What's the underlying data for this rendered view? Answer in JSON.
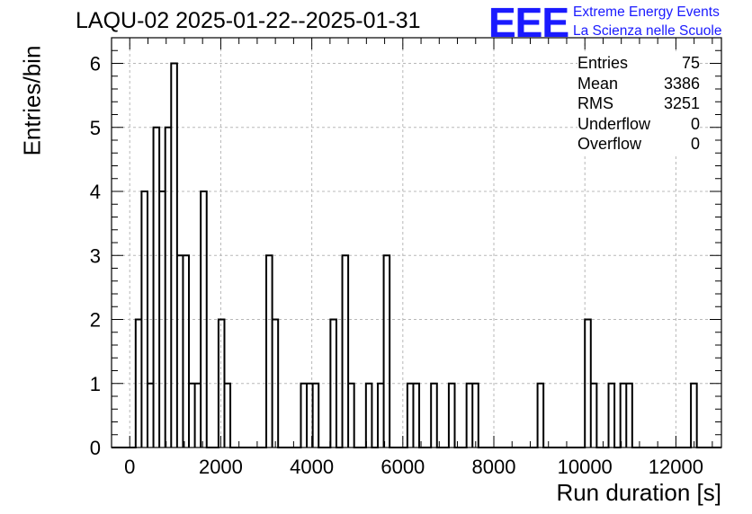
{
  "chart_data": {
    "type": "histogram",
    "title": "LAQU-02 2025-01-22--2025-01-31",
    "xlabel": "Run duration [s]",
    "ylabel": "Entries/bin",
    "xlim": [
      -400,
      13000
    ],
    "ylim": [
      0,
      6.4
    ],
    "x_ticks": [
      0,
      2000,
      4000,
      6000,
      8000,
      10000,
      12000
    ],
    "y_ticks": [
      0,
      1,
      2,
      3,
      4,
      5,
      6
    ],
    "grid": true,
    "bin_width": 130,
    "bins": [
      {
        "x0": 130,
        "x1": 260,
        "count": 2
      },
      {
        "x0": 260,
        "x1": 390,
        "count": 4
      },
      {
        "x0": 390,
        "x1": 520,
        "count": 1
      },
      {
        "x0": 520,
        "x1": 650,
        "count": 5
      },
      {
        "x0": 650,
        "x1": 780,
        "count": 4
      },
      {
        "x0": 780,
        "x1": 910,
        "count": 5
      },
      {
        "x0": 910,
        "x1": 1040,
        "count": 6
      },
      {
        "x0": 1040,
        "x1": 1170,
        "count": 3
      },
      {
        "x0": 1170,
        "x1": 1300,
        "count": 3
      },
      {
        "x0": 1300,
        "x1": 1430,
        "count": 1
      },
      {
        "x0": 1430,
        "x1": 1560,
        "count": 1
      },
      {
        "x0": 1560,
        "x1": 1690,
        "count": 4
      },
      {
        "x0": 1950,
        "x1": 2080,
        "count": 2
      },
      {
        "x0": 2080,
        "x1": 2210,
        "count": 1
      },
      {
        "x0": 3000,
        "x1": 3130,
        "count": 3
      },
      {
        "x0": 3130,
        "x1": 3260,
        "count": 2
      },
      {
        "x0": 3760,
        "x1": 3890,
        "count": 1
      },
      {
        "x0": 3890,
        "x1": 4020,
        "count": 1
      },
      {
        "x0": 4020,
        "x1": 4150,
        "count": 1
      },
      {
        "x0": 4410,
        "x1": 4540,
        "count": 2
      },
      {
        "x0": 4670,
        "x1": 4800,
        "count": 3
      },
      {
        "x0": 4800,
        "x1": 4930,
        "count": 1
      },
      {
        "x0": 5190,
        "x1": 5320,
        "count": 1
      },
      {
        "x0": 5450,
        "x1": 5580,
        "count": 1
      },
      {
        "x0": 5580,
        "x1": 5710,
        "count": 3
      },
      {
        "x0": 6100,
        "x1": 6230,
        "count": 1
      },
      {
        "x0": 6230,
        "x1": 6360,
        "count": 1
      },
      {
        "x0": 6620,
        "x1": 6750,
        "count": 1
      },
      {
        "x0": 7010,
        "x1": 7140,
        "count": 1
      },
      {
        "x0": 7400,
        "x1": 7530,
        "count": 1
      },
      {
        "x0": 7530,
        "x1": 7660,
        "count": 1
      },
      {
        "x0": 8960,
        "x1": 9090,
        "count": 1
      },
      {
        "x0": 10000,
        "x1": 10130,
        "count": 2
      },
      {
        "x0": 10130,
        "x1": 10260,
        "count": 1
      },
      {
        "x0": 10520,
        "x1": 10650,
        "count": 1
      },
      {
        "x0": 10780,
        "x1": 10910,
        "count": 1
      },
      {
        "x0": 10910,
        "x1": 11040,
        "count": 1
      },
      {
        "x0": 12330,
        "x1": 12460,
        "count": 1
      }
    ],
    "stats_box": {
      "position": "top-right",
      "rows": [
        {
          "label": "Entries",
          "value": "75"
        },
        {
          "label": "Mean",
          "value": "3386"
        },
        {
          "label": "RMS",
          "value": "3251"
        },
        {
          "label": "Underflow",
          "value": "0"
        },
        {
          "label": "Overflow",
          "value": "0"
        }
      ]
    }
  },
  "logo": {
    "mark": "EEE",
    "line1": "Extreme Energy Events",
    "line2": "La Scienza nelle Scuole",
    "color": "#1a1aff"
  }
}
